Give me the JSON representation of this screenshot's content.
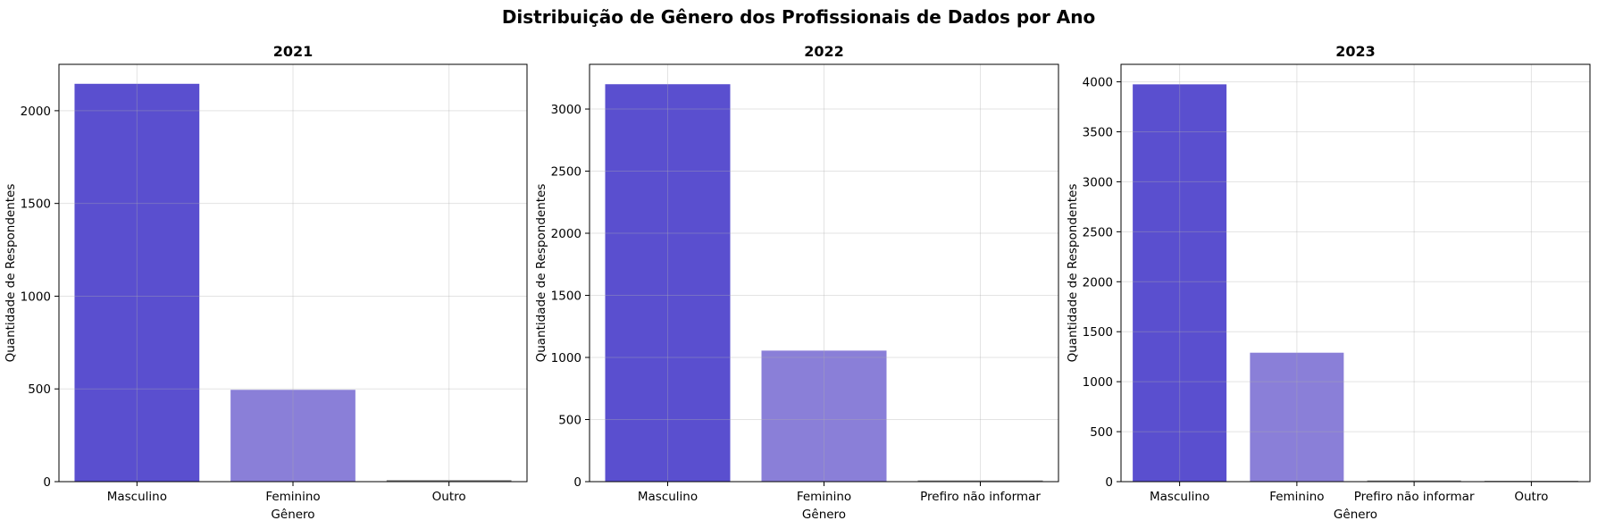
{
  "chart_data": {
    "suptitle": "Distribuição de Gênero dos Profissionais de Dados por Ano",
    "colors": {
      "Masculino": "#5a4fcf",
      "Feminino": "#8a7fd8",
      "Outro": "#7d7d7d",
      "Prefiro não informar": "#8c8c8c"
    },
    "grid": true,
    "panels": [
      {
        "type": "bar",
        "title": "2021",
        "xlabel": "Gênero",
        "ylabel": "Quantidade de Respondentes",
        "categories": [
          "Masculino",
          "Feminino",
          "Outro"
        ],
        "values": [
          2145,
          495,
          8
        ],
        "ylim": [
          0,
          2250
        ],
        "yticks": [
          0,
          500,
          1000,
          1500,
          2000
        ]
      },
      {
        "type": "bar",
        "title": "2022",
        "xlabel": "Gênero",
        "ylabel": "Quantidade de Respondentes",
        "categories": [
          "Masculino",
          "Feminino",
          "Prefiro não informar"
        ],
        "values": [
          3200,
          1055,
          10
        ],
        "ylim": [
          0,
          3360
        ],
        "yticks": [
          0,
          500,
          1000,
          1500,
          2000,
          2500,
          3000
        ]
      },
      {
        "type": "bar",
        "title": "2023",
        "xlabel": "Gênero",
        "ylabel": "Quantidade de Respondentes",
        "categories": [
          "Masculino",
          "Feminino",
          "Prefiro não informar",
          "Outro"
        ],
        "values": [
          3975,
          1290,
          12,
          8
        ],
        "ylim": [
          0,
          4175
        ],
        "yticks": [
          0,
          500,
          1000,
          1500,
          2000,
          2500,
          3000,
          3500,
          4000
        ]
      }
    ]
  }
}
